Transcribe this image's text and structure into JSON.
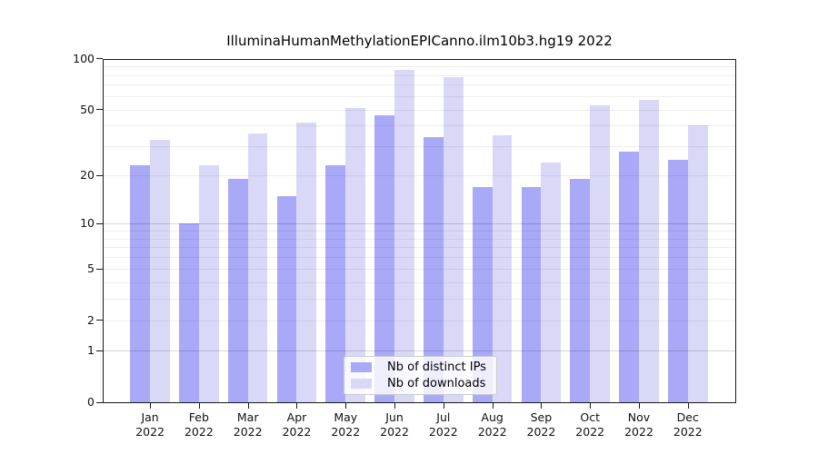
{
  "chart_data": {
    "type": "bar",
    "title": "IlluminaHumanMethylationEPICanno.ilm10b3.hg19 2022",
    "categories": [
      "Jan",
      "Feb",
      "Mar",
      "Apr",
      "May",
      "Jun",
      "Jul",
      "Aug",
      "Sep",
      "Oct",
      "Nov",
      "Dec"
    ],
    "x_tick_year": "2022",
    "series": [
      {
        "name": "Nb of distinct IPs",
        "color": "#a9a9f7",
        "values": [
          23,
          10,
          19,
          15,
          23,
          46,
          34,
          17,
          17,
          19,
          28,
          25
        ]
      },
      {
        "name": "Nb of downloads",
        "color": "#d9d9f7",
        "values": [
          33,
          23,
          36,
          42,
          51,
          86,
          78,
          35,
          24,
          53,
          57,
          40
        ]
      }
    ],
    "y_axis": {
      "scale": "log1p",
      "range": [
        0,
        100
      ],
      "ticks": [
        0,
        1,
        2,
        5,
        10,
        20,
        50,
        100
      ],
      "major_gridlines": [
        1,
        10
      ],
      "minor_gridlines": [
        2,
        3,
        4,
        5,
        6,
        7,
        8,
        9,
        20,
        30,
        40,
        50,
        60,
        70,
        80,
        90
      ]
    },
    "grid": true,
    "legend_position": "lower center"
  }
}
